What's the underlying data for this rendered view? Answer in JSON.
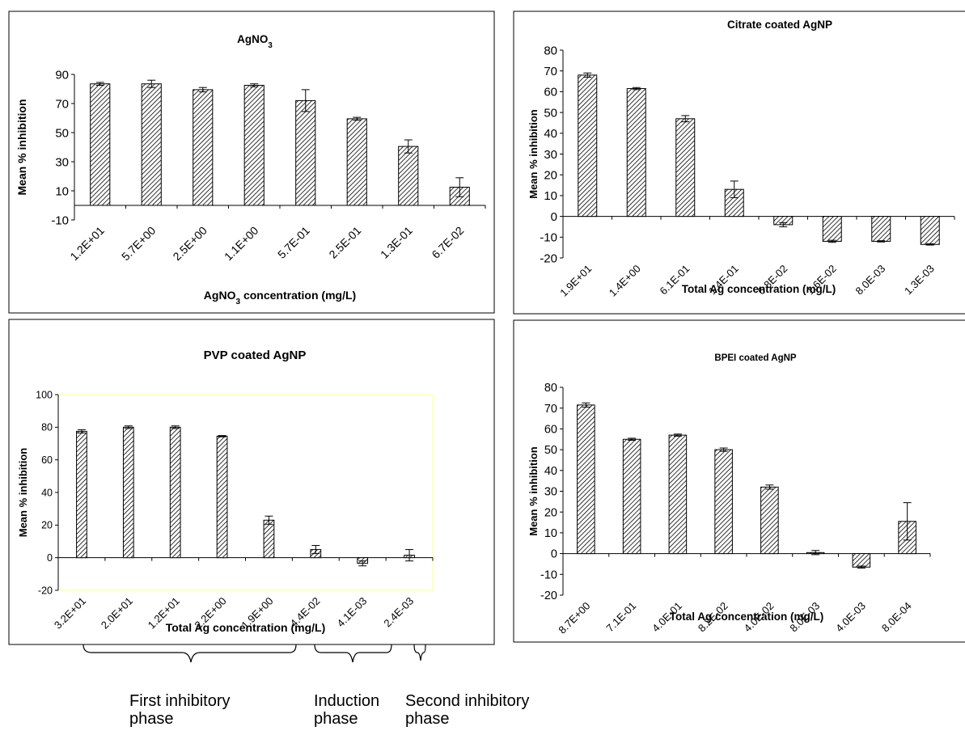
{
  "chart_data": [
    {
      "type": "bar",
      "title": "AgNO3",
      "title_main": "AgNO",
      "title_sub": "3",
      "xlabel_main": "AgNO",
      "xlabel_sub": "3",
      "xlabel_rest": " concentration (mg/L)",
      "ylabel": "Mean % inhibition",
      "ylim": [
        -10,
        90
      ],
      "yticks": [
        -10,
        10,
        30,
        50,
        70,
        90
      ],
      "categories": [
        "1.2E+01",
        "5.7E+00",
        "2.5E+00",
        "1.1E+00",
        "5.7E-01",
        "2.5E-01",
        "1.3E-01",
        "6.7E-02"
      ],
      "values": [
        83.5,
        83.5,
        79.5,
        82.5,
        72,
        59.5,
        40.5,
        12.5
      ],
      "errors": [
        1,
        2.5,
        1.5,
        1,
        7.5,
        1,
        4.5,
        6.5
      ],
      "grid": false,
      "legend": "none"
    },
    {
      "type": "bar",
      "title": "Citrate coated AgNP",
      "xlabel": "Total Ag concentration (mg/L)",
      "ylabel": "Mean % inhibition",
      "ylim": [
        -20,
        80
      ],
      "yticks": [
        -20,
        -10,
        0,
        10,
        20,
        30,
        40,
        50,
        60,
        70,
        80
      ],
      "categories": [
        "1.9E+01",
        "1.4E+00",
        "6.1E-01",
        "1.4E-01",
        "6.8E-02",
        "1.6E-02",
        "8.0E-03",
        "1.3E-03"
      ],
      "values": [
        68,
        61.5,
        47,
        13,
        -4,
        -12,
        -12,
        -13.5
      ],
      "errors": [
        1,
        0.5,
        1.5,
        4,
        1,
        0.5,
        0.3,
        0.3
      ],
      "grid": false,
      "legend": "none"
    },
    {
      "type": "bar",
      "title": "PVP coated AgNP",
      "xlabel": "Total Ag concentration (mg/L)",
      "ylabel": "Mean % inhibition",
      "ylim": [
        -20,
        100
      ],
      "yticks": [
        -20,
        0,
        20,
        40,
        60,
        80,
        100
      ],
      "categories": [
        "3.2E+01",
        "2.0E+01",
        "1.2E+01",
        "2.2E+00",
        "1.9E+00",
        "4.4E-02",
        "4.1E-03",
        "2.4E-03"
      ],
      "values": [
        77.5,
        80,
        80,
        74.5,
        23,
        5,
        -3.5,
        1.5
      ],
      "errors": [
        1,
        0.8,
        0.8,
        0.4,
        2.5,
        2.5,
        1.5,
        3.5
      ],
      "grid": false,
      "legend": "none"
    },
    {
      "type": "bar",
      "title": "BPEI coated AgNP",
      "xlabel": "Total Ag concentration (mg/L)",
      "ylabel": "Mean % inhibition",
      "ylim": [
        -20,
        80
      ],
      "yticks": [
        -20,
        -10,
        0,
        10,
        20,
        30,
        40,
        50,
        60,
        70,
        80
      ],
      "categories": [
        "8.7E+00",
        "7.1E-01",
        "4.0E-01",
        "8.2E-02",
        "4.0E-02",
        "8.0E-03",
        "4.0E-03",
        "8.0E-04"
      ],
      "values": [
        71.5,
        55,
        57,
        50,
        32,
        0.5,
        -6.5,
        15.5
      ],
      "errors": [
        1,
        0.5,
        0.5,
        0.8,
        1,
        1,
        0.5,
        9
      ],
      "grid": false,
      "legend": "none"
    }
  ],
  "phases": {
    "first": "First inhibitory\nphase",
    "induction": "Induction\nphase",
    "second": "Second inhibitory\nphase"
  }
}
